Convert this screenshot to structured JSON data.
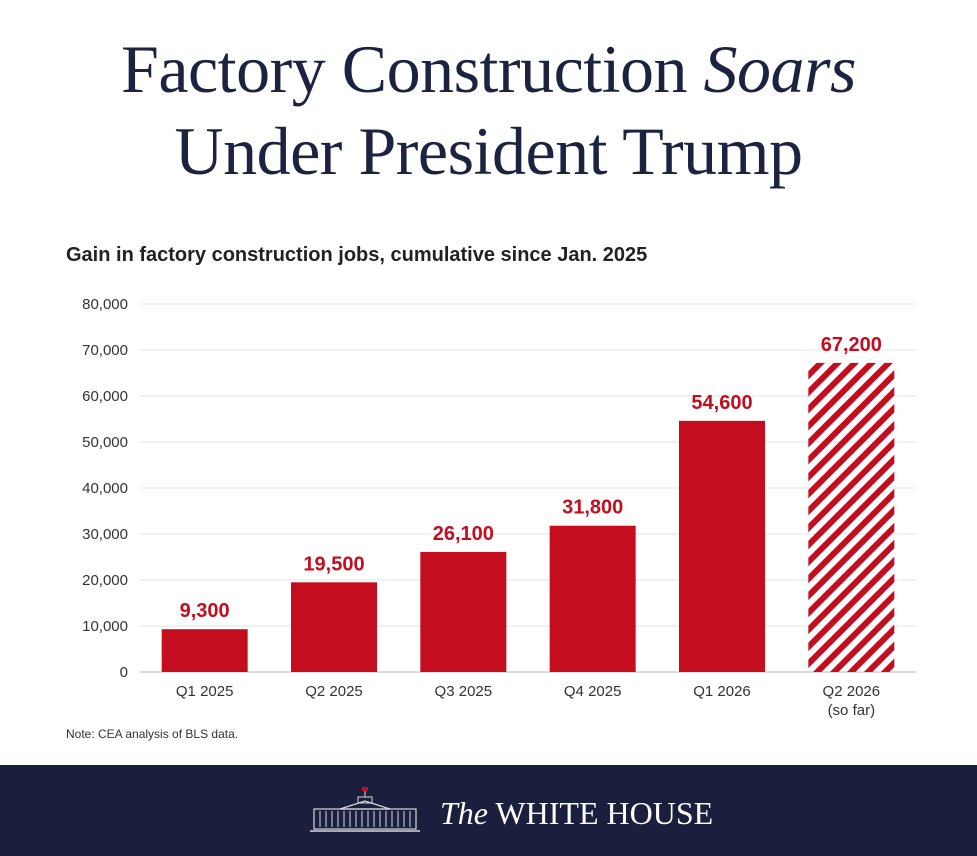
{
  "header": {
    "title_part1": "Factory Construction",
    "title_italic": "Soars",
    "title_line2": "Under President Trump"
  },
  "chart_data": {
    "type": "bar",
    "title": "Gain in factory construction jobs, cumulative since Jan. 2025",
    "categories": [
      "Q1 2025",
      "Q2 2025",
      "Q3 2025",
      "Q4 2025",
      "Q1 2026",
      "Q2 2026"
    ],
    "category_sublabels": [
      "",
      "",
      "",
      "",
      "",
      "(so far)"
    ],
    "values": [
      9300,
      19500,
      26100,
      31800,
      54600,
      67200
    ],
    "value_labels": [
      "9,300",
      "19,500",
      "26,100",
      "31,800",
      "54,600",
      "67,200"
    ],
    "hatched": [
      false,
      false,
      false,
      false,
      false,
      true
    ],
    "ylim": [
      0,
      80000
    ],
    "yticks": [
      0,
      10000,
      20000,
      30000,
      40000,
      50000,
      60000,
      70000,
      80000
    ],
    "ytick_labels": [
      "0",
      "10,000",
      "20,000",
      "30,000",
      "40,000",
      "50,000",
      "60,000",
      "70,000",
      "80,000"
    ],
    "grid": true,
    "bar_color": "#c40d1e",
    "label_color": "#c40d1e",
    "grid_color": "#e3e3e3",
    "text_color": "#333333"
  },
  "note": "Note: CEA analysis of BLS data.",
  "footer": {
    "brand_the": "The",
    "brand_name": "WHITE HOUSE",
    "background_color": "#1a1f3d"
  }
}
